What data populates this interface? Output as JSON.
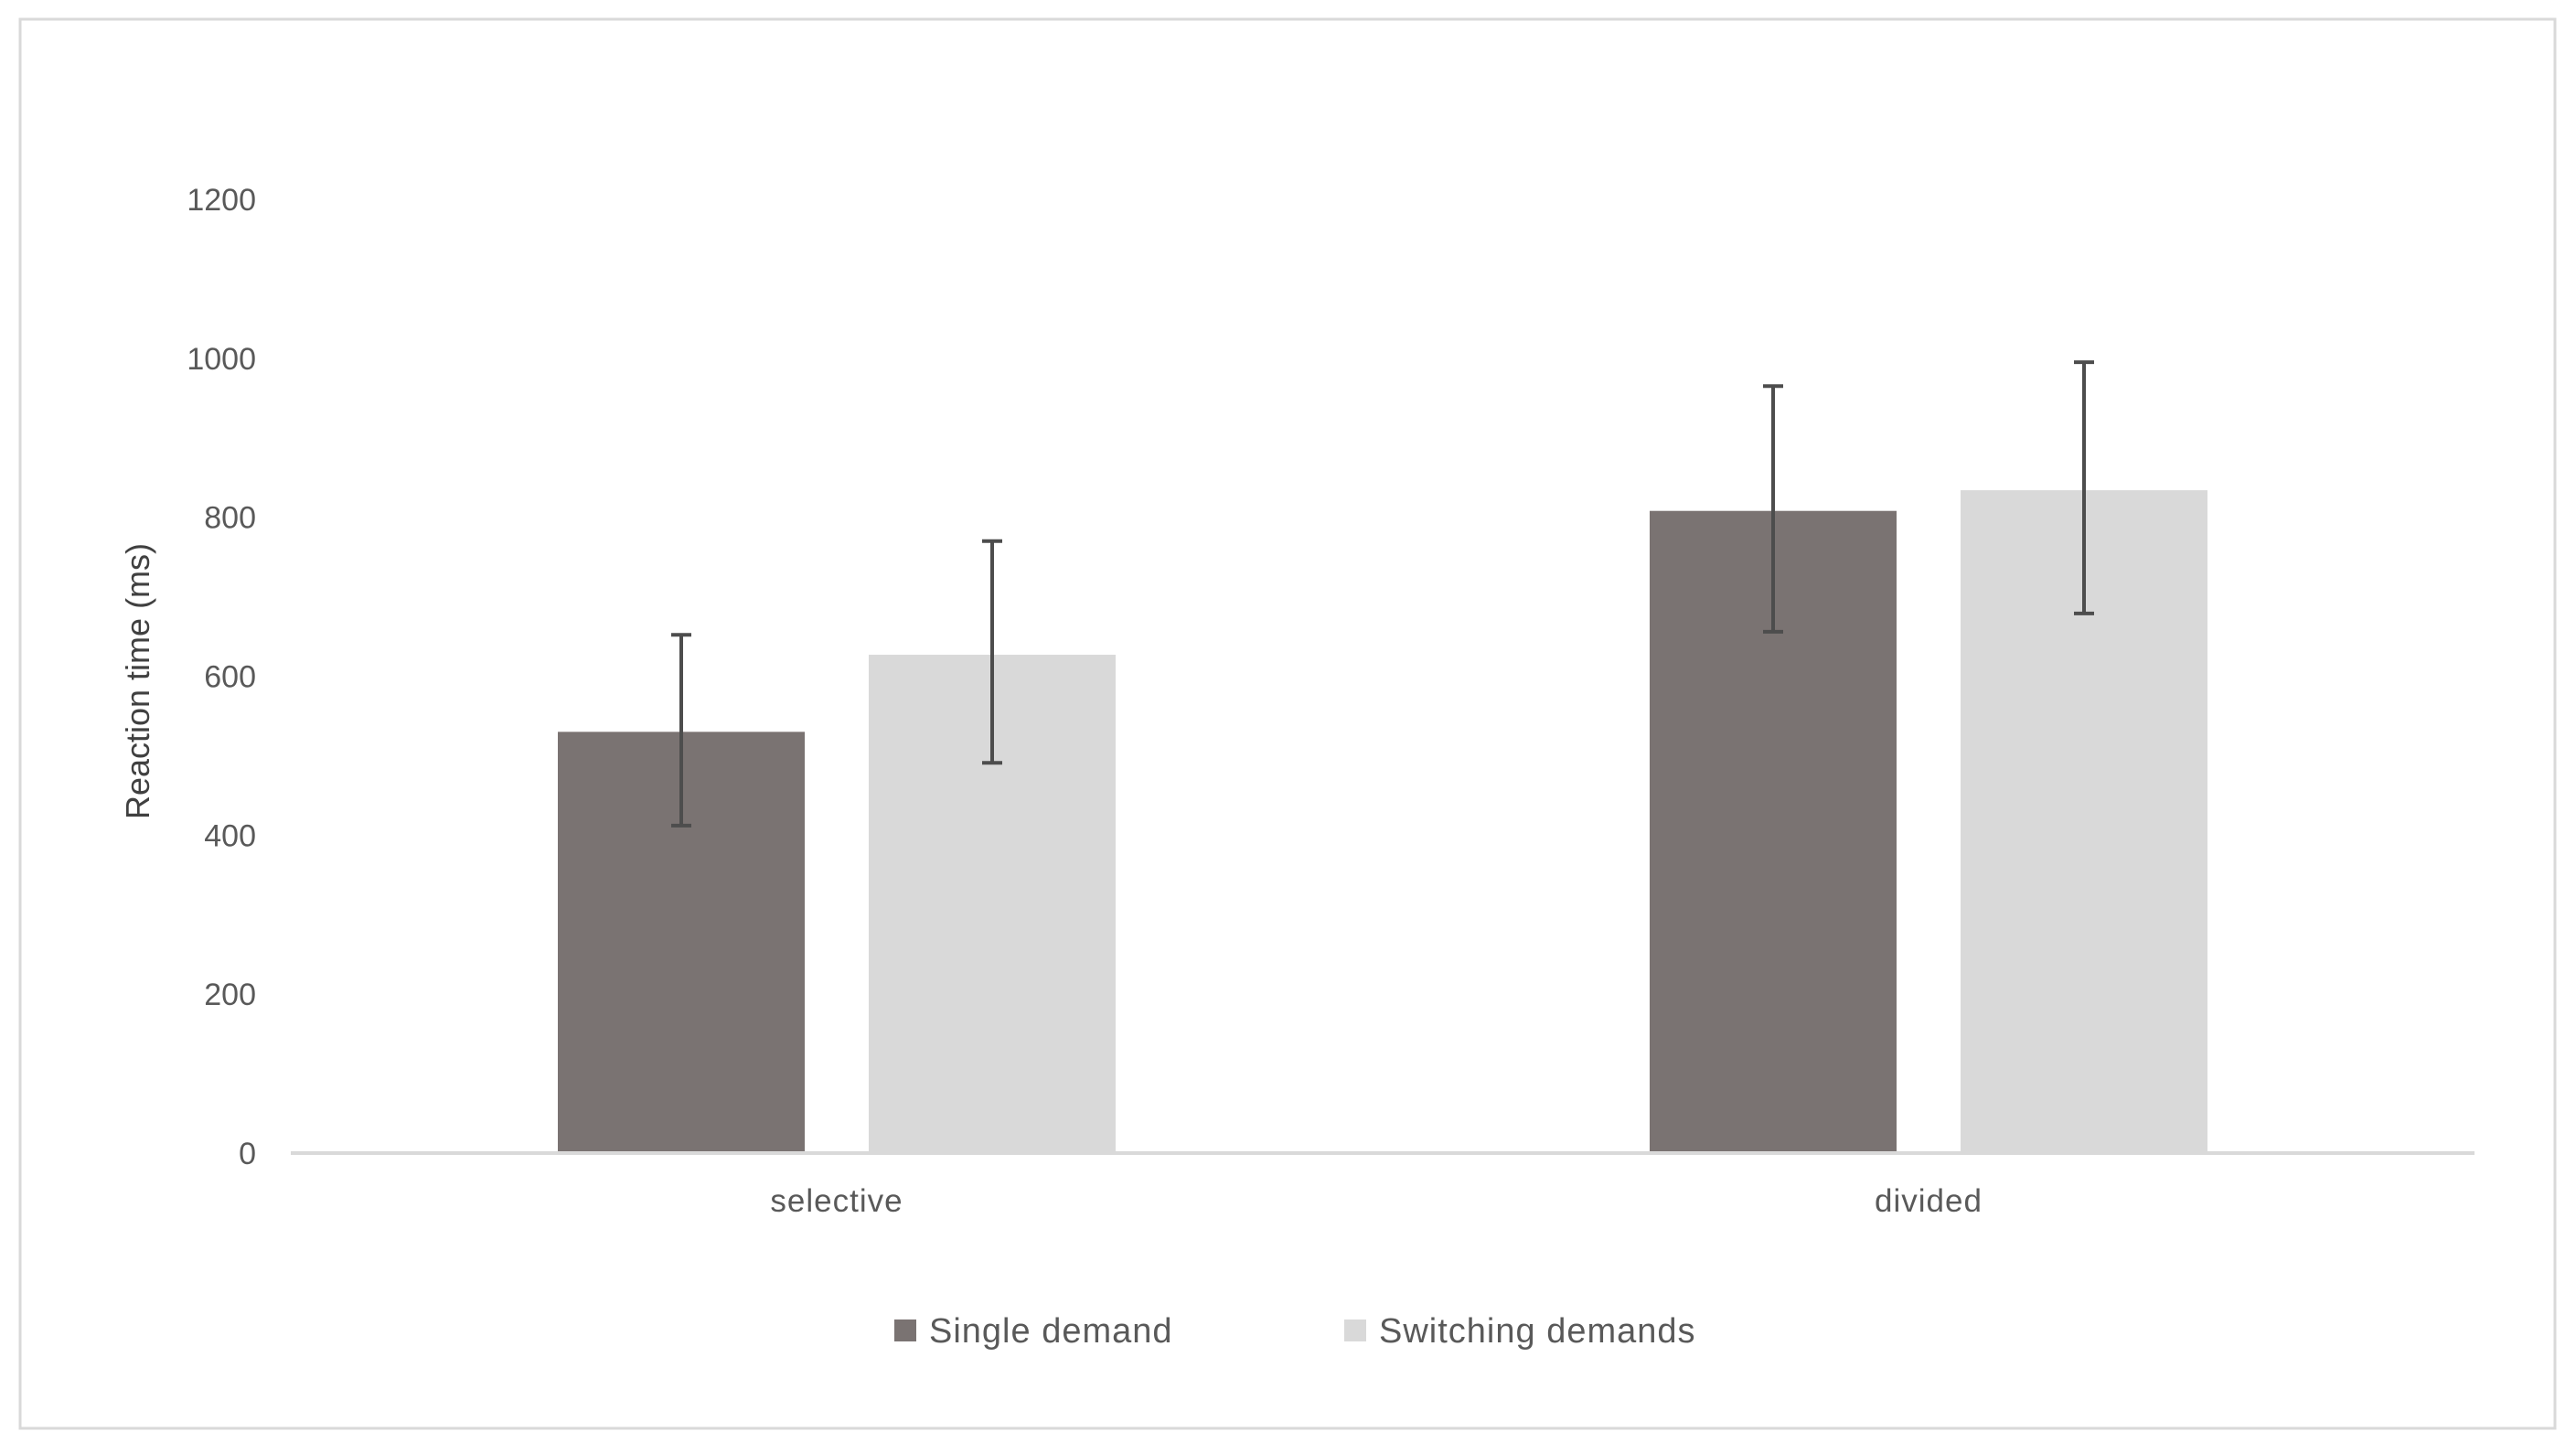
{
  "chart_data": {
    "type": "bar",
    "categories": [
      "selective",
      "divided"
    ],
    "series": [
      {
        "name": "Single demand",
        "color": "#7a7372",
        "values": [
          530,
          808
        ],
        "error_low": [
          412,
          656
        ],
        "error_high": [
          652,
          965
        ]
      },
      {
        "name": "Switching demands",
        "color": "#d9d9d9",
        "values": [
          627,
          834
        ],
        "error_low": [
          491,
          679
        ],
        "error_high": [
          770,
          995
        ]
      }
    ],
    "ylabel": "Reaction time (ms)",
    "xlabel": "",
    "ylim": [
      0,
      1200
    ],
    "yticks": [
      "0",
      "200",
      "400",
      "600",
      "800",
      "1000",
      "1200"
    ],
    "grid": false,
    "legend_position": "bottom"
  }
}
